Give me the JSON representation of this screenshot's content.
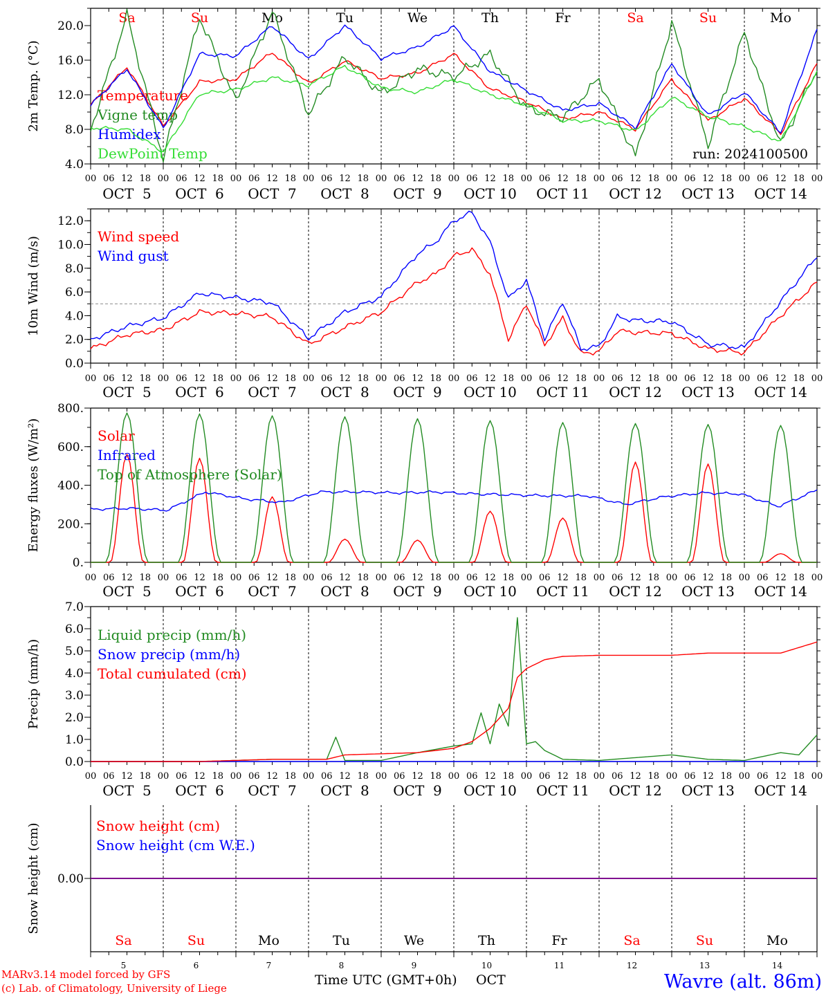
{
  "colors": {
    "red": "#ff0000",
    "green": "#228b22",
    "blue": "#0000ff",
    "lightgreen": "#33dd33",
    "purple": "#800080",
    "frame": "#000000"
  },
  "days": [
    {
      "abbr": "Sa",
      "color": "red",
      "date": "OCT  5",
      "num": "5"
    },
    {
      "abbr": "Su",
      "color": "red",
      "date": "OCT  6",
      "num": "6"
    },
    {
      "abbr": "Mo",
      "color": "black",
      "date": "OCT  7",
      "num": "7"
    },
    {
      "abbr": "Tu",
      "color": "black",
      "date": "OCT  8",
      "num": "8"
    },
    {
      "abbr": "We",
      "color": "black",
      "date": "OCT  9",
      "num": "9"
    },
    {
      "abbr": "Th",
      "color": "black",
      "date": "OCT 10",
      "num": "10"
    },
    {
      "abbr": "Fr",
      "color": "black",
      "date": "OCT 11",
      "num": "11"
    },
    {
      "abbr": "Sa",
      "color": "red",
      "date": "OCT 12",
      "num": "12"
    },
    {
      "abbr": "Su",
      "color": "red",
      "date": "OCT 13",
      "num": "13"
    },
    {
      "abbr": "Mo",
      "color": "black",
      "date": "OCT 14",
      "num": "14"
    }
  ],
  "hour_ticks": [
    "00",
    "06",
    "12",
    "18"
  ],
  "footer": {
    "model": "MARv3.14 model forced by GFS",
    "credit": "(c) Lab. of Climatology, University of Liege",
    "xlabel": "Time UTC (GMT+0h)",
    "month": "OCT",
    "station": "Wavre (alt. 86m)"
  },
  "chart_data": [
    {
      "type": "line",
      "ylabel": "2m Temp. (°C)",
      "ylim": [
        4,
        22
      ],
      "yticks": [
        "4.0",
        "8.0",
        "12.0",
        "16.0",
        "20.0"
      ],
      "annotation": "run: 2024100500",
      "series": [
        {
          "name": "Temperature",
          "color": "red",
          "x": [
            0,
            12,
            24,
            36,
            48,
            60,
            72,
            84,
            96,
            108,
            120,
            132,
            144,
            156,
            168,
            180,
            192,
            204,
            216,
            228,
            240
          ],
          "values": [
            10.8,
            15.2,
            8.4,
            13.5,
            13.8,
            16.9,
            13.3,
            15.9,
            13.9,
            14.5,
            16.7,
            12.7,
            11.2,
            9.2,
            10.0,
            8.0,
            13.8,
            9.0,
            11.6,
            7.5,
            15.6
          ]
        },
        {
          "name": "Vigne temp",
          "color": "green",
          "x": [
            0,
            12,
            24,
            36,
            48,
            60,
            72,
            84,
            96,
            108,
            120,
            132,
            144,
            156,
            168,
            180,
            192,
            204,
            216,
            228,
            240
          ],
          "values": [
            8.0,
            21.2,
            4.6,
            21.0,
            11.2,
            21.6,
            9.8,
            16.4,
            12.1,
            15.0,
            14.1,
            16.7,
            10.4,
            9.4,
            13.8,
            4.8,
            20.4,
            6.2,
            19.2,
            6.2,
            15.0
          ]
        },
        {
          "name": "Humidex",
          "color": "blue",
          "x": [
            0,
            12,
            24,
            36,
            48,
            60,
            72,
            84,
            96,
            108,
            120,
            132,
            144,
            156,
            168,
            180,
            192,
            204,
            216,
            228,
            240
          ],
          "values": [
            10.8,
            15.0,
            8.1,
            16.7,
            16.5,
            20.0,
            16.1,
            20.0,
            16.2,
            17.5,
            19.9,
            14.7,
            12.5,
            10.2,
            11.0,
            8.2,
            15.6,
            9.6,
            12.3,
            7.6,
            19.5
          ]
        },
        {
          "name": "DewPoint Temp",
          "color": "lightgreen",
          "x": [
            0,
            12,
            24,
            36,
            48,
            60,
            72,
            84,
            96,
            108,
            120,
            132,
            144,
            156,
            168,
            180,
            192,
            204,
            216,
            228,
            240
          ],
          "values": [
            8.2,
            8.0,
            5.4,
            12.1,
            12.6,
            14.0,
            13.1,
            15.3,
            12.8,
            12.3,
            13.8,
            12.0,
            10.8,
            9.0,
            9.0,
            7.8,
            11.7,
            9.5,
            8.3,
            6.6,
            14.8
          ]
        }
      ]
    },
    {
      "type": "line",
      "ylabel": "10m Wind (m/s)",
      "ylim": [
        0,
        13
      ],
      "yticks": [
        "0.0",
        "2.0",
        "4.0",
        "6.0",
        "8.0",
        "10.0",
        "12.0"
      ],
      "reference_line": 5.0,
      "series": [
        {
          "name": "Wind speed",
          "color": "red",
          "x": [
            0,
            12,
            24,
            36,
            48,
            60,
            72,
            84,
            96,
            108,
            114,
            120,
            126,
            132,
            138,
            144,
            150,
            156,
            162,
            168,
            174,
            180,
            192,
            204,
            216,
            228,
            240
          ],
          "values": [
            1.2,
            2.4,
            2.8,
            4.3,
            4.2,
            3.9,
            1.6,
            3.0,
            4.3,
            6.8,
            7.5,
            9.0,
            9.6,
            7.5,
            2.0,
            5.0,
            1.5,
            3.8,
            0.8,
            1.0,
            2.7,
            2.6,
            2.5,
            1.2,
            0.9,
            4.0,
            6.8
          ]
        },
        {
          "name": "Wind gust",
          "color": "blue",
          "x": [
            0,
            12,
            24,
            36,
            48,
            60,
            72,
            84,
            96,
            108,
            114,
            120,
            126,
            132,
            138,
            144,
            150,
            156,
            162,
            168,
            174,
            180,
            192,
            204,
            216,
            228,
            240
          ],
          "values": [
            2.0,
            3.1,
            3.8,
            5.9,
            5.5,
            5.1,
            2.1,
            4.3,
            5.6,
            9.2,
            10.2,
            12.0,
            12.7,
            10.2,
            5.4,
            7.0,
            2.0,
            5.2,
            1.2,
            1.4,
            3.9,
            3.6,
            3.5,
            1.6,
            1.3,
            5.2,
            9.0
          ]
        }
      ]
    },
    {
      "type": "line",
      "ylabel": "Energy fluxes (W/m²)",
      "ylim": [
        0,
        800
      ],
      "yticks": [
        "0.",
        "200.",
        "400.",
        "600.",
        "800."
      ],
      "series": [
        {
          "name": "Solar",
          "color": "red",
          "peaks": [
            560,
            540,
            340,
            120,
            115,
            265,
            230,
            520,
            510,
            45
          ]
        },
        {
          "name": "Infrared",
          "color": "blue",
          "values": [
            275,
            280,
            270,
            365,
            330,
            310,
            365,
            365,
            360,
            365,
            355,
            350,
            345,
            345,
            300,
            340,
            360,
            355,
            290,
            375
          ]
        },
        {
          "name": "Top of Atmosphere (Solar)",
          "color": "green",
          "peaks": [
            775,
            770,
            760,
            755,
            745,
            735,
            725,
            720,
            715,
            710
          ]
        }
      ]
    },
    {
      "type": "line",
      "ylabel": "Precip (mm/h)",
      "ylim": [
        0,
        7
      ],
      "yticks": [
        "0.0",
        "1.0",
        "2.0",
        "3.0",
        "4.0",
        "5.0",
        "6.0",
        "7.0"
      ],
      "series": [
        {
          "name": "Liquid precip (mm/h)",
          "color": "green",
          "x": [
            0,
            36,
            48,
            60,
            78,
            81,
            84,
            96,
            108,
            120,
            126,
            129,
            132,
            135,
            138,
            141,
            144,
            147,
            150,
            156,
            168,
            192,
            204,
            216,
            228,
            234,
            240
          ],
          "values": [
            0,
            0,
            0.05,
            0.1,
            0.1,
            1.1,
            0.05,
            0.05,
            0.4,
            0.7,
            0.8,
            2.2,
            0.8,
            2.6,
            1.6,
            6.5,
            0.8,
            0.9,
            0.5,
            0.1,
            0.05,
            0.3,
            0.1,
            0.05,
            0.4,
            0.3,
            1.2
          ]
        },
        {
          "name": "Snow precip (mm/h)",
          "color": "blue",
          "x": [
            0,
            240
          ],
          "values": [
            0,
            0
          ]
        },
        {
          "name": "Total cumulated (cm)",
          "color": "red",
          "x": [
            0,
            36,
            48,
            60,
            78,
            84,
            96,
            108,
            120,
            126,
            132,
            138,
            141,
            144,
            150,
            156,
            168,
            192,
            204,
            216,
            228,
            240
          ],
          "values": [
            0,
            0,
            0.05,
            0.1,
            0.1,
            0.3,
            0.35,
            0.4,
            0.6,
            0.9,
            1.5,
            2.4,
            3.8,
            4.2,
            4.6,
            4.75,
            4.8,
            4.8,
            4.9,
            4.9,
            4.9,
            5.4
          ]
        }
      ]
    },
    {
      "type": "line",
      "ylabel": "Snow height (cm)",
      "ylim": [
        -1,
        1
      ],
      "yticks": [
        "0.00"
      ],
      "series": [
        {
          "name": "Snow height (cm)",
          "color": "red",
          "x": [
            0,
            240
          ],
          "values": [
            0,
            0
          ]
        },
        {
          "name": "Snow height (cm W.E.)",
          "color": "blue",
          "x": [
            0,
            240
          ],
          "values": [
            0,
            0
          ]
        }
      ]
    }
  ]
}
